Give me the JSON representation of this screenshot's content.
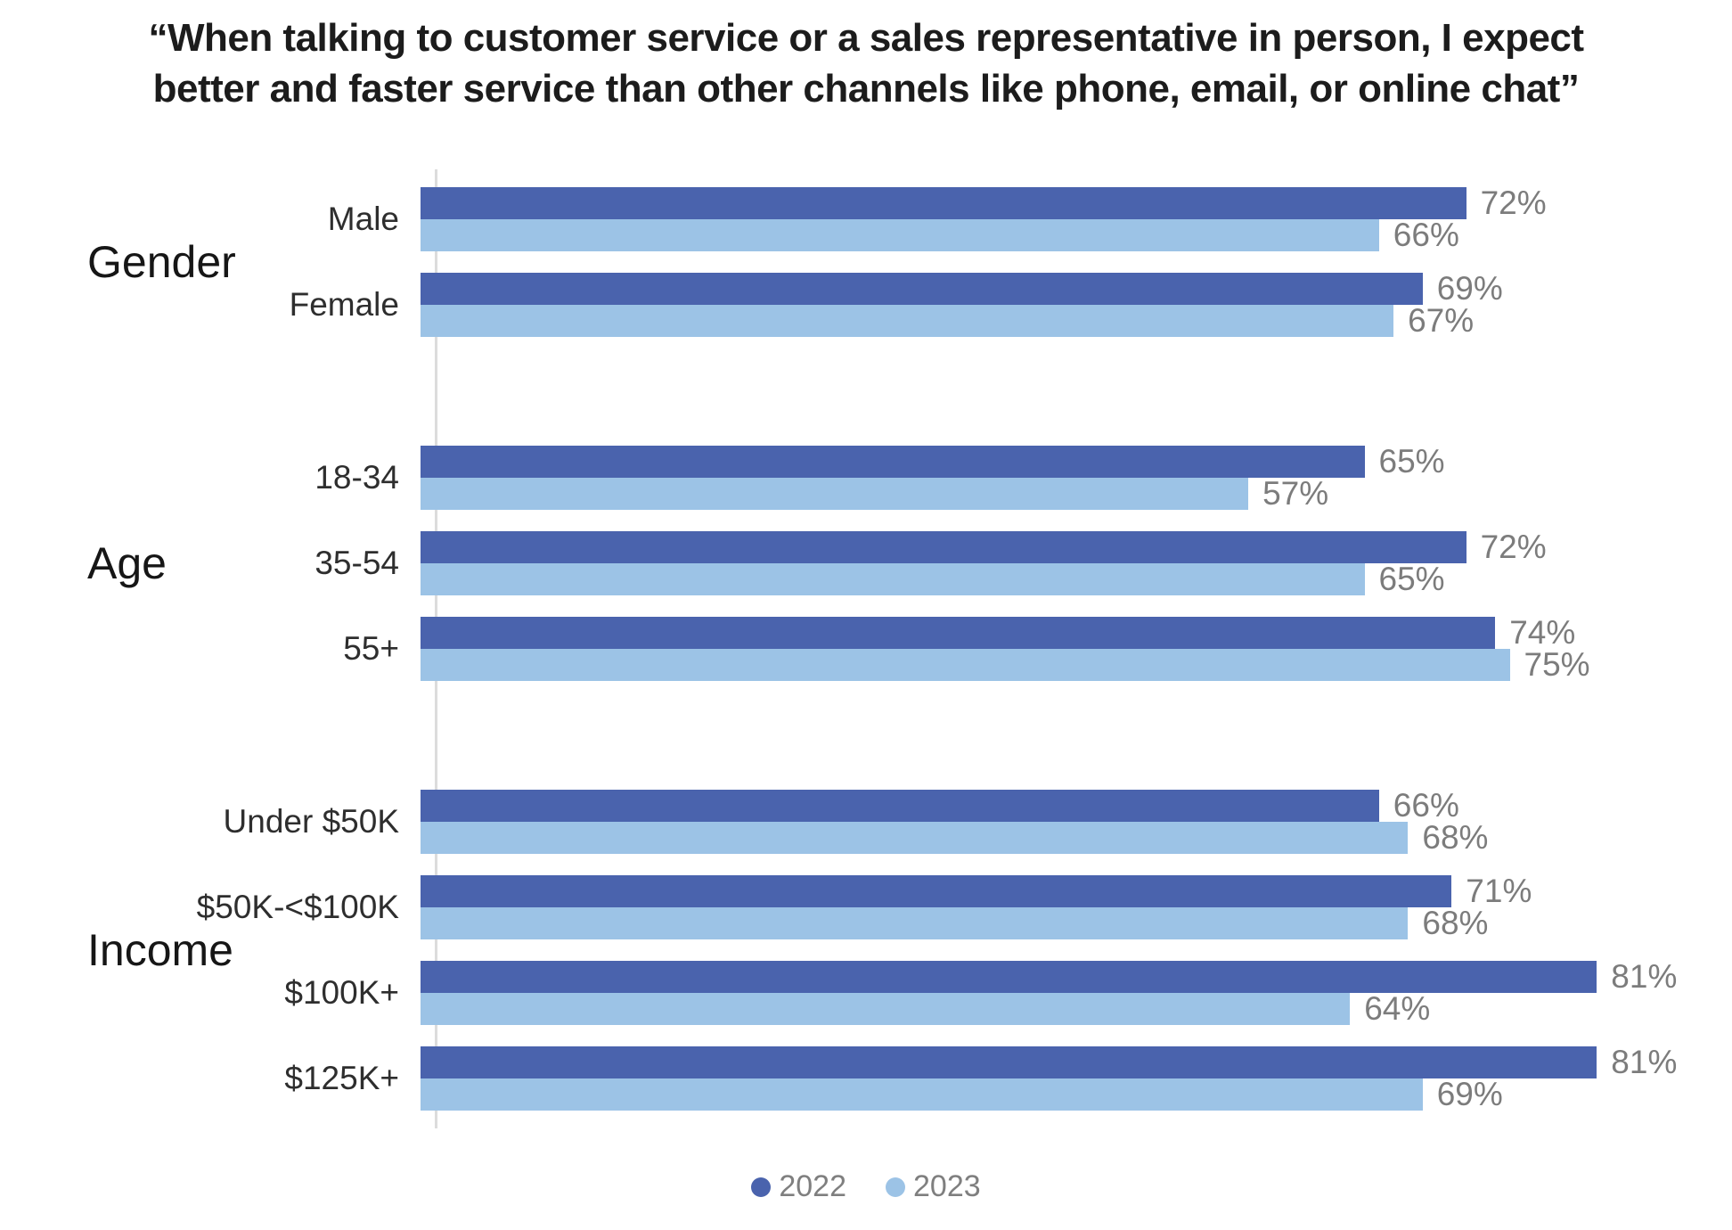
{
  "chart_data": {
    "type": "bar",
    "orientation": "horizontal",
    "title": "“When talking to customer service or a sales representative in person, I expect\nbetter and faster service than other channels like phone, email, or online chat”",
    "categories": [
      "Male",
      "Female",
      "18-34",
      "35-54",
      "55+",
      "Under $50K",
      "$50K-<$100K",
      "$100K+",
      "$125K+"
    ],
    "series": [
      {
        "name": "2022",
        "color": "#4A63AD",
        "values": [
          72,
          69,
          65,
          72,
          74,
          66,
          71,
          81,
          81
        ]
      },
      {
        "name": "2023",
        "color": "#9CC3E6",
        "values": [
          66,
          67,
          57,
          65,
          75,
          68,
          68,
          64,
          69
        ]
      }
    ],
    "groups": [
      {
        "label": "Gender",
        "categories": [
          "Male",
          "Female"
        ]
      },
      {
        "label": "Age",
        "categories": [
          "18-34",
          "35-54",
          "55+"
        ]
      },
      {
        "label": "Income",
        "categories": [
          "Under $50K",
          "$50K-<$100K",
          "$100K+",
          "$125K+"
        ]
      }
    ],
    "value_suffix": "%",
    "xlim": [
      0,
      100
    ],
    "grid": false,
    "legend_position": "bottom",
    "axis_color": "#dcdcdc",
    "value_label_color": "#7c7c7c"
  }
}
